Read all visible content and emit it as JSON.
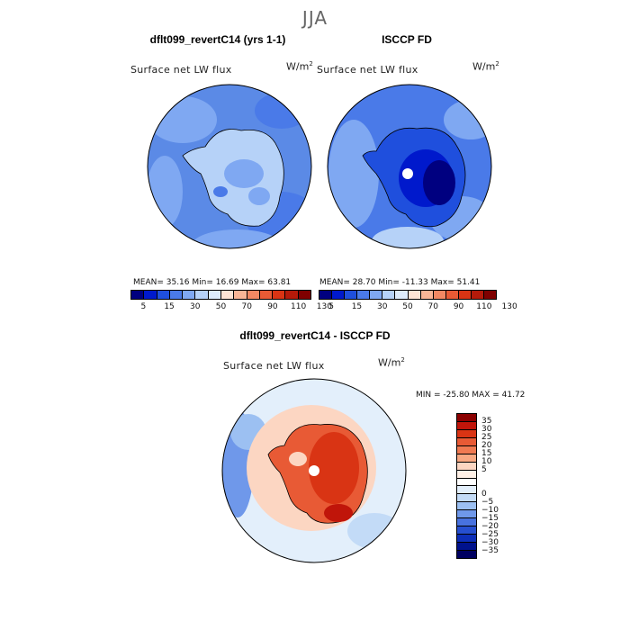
{
  "season": "JJA",
  "panels": {
    "model": {
      "title": "dflt099_revertC14 (yrs 1-1)",
      "variable": "Surface net LW flux",
      "units_base": "W/m",
      "units_exp": "2"
    },
    "obs": {
      "title": "ISCCP FD",
      "variable": "Surface net LW flux",
      "units_base": "W/m",
      "units_exp": "2"
    },
    "diff": {
      "title": "dflt099_revertC14 - ISCCP FD",
      "variable": "Surface net LW flux",
      "units_base": "W/m",
      "units_exp": "2"
    }
  },
  "stats": {
    "model": "MEAN=   35.16   Min=   16.69   Max=   63.81",
    "obs": "MEAN=   28.70   Min= -11.33   Max=   51.41",
    "diff": "MIN = -25.80  MAX =  41.72"
  },
  "colorbar_levels": {
    "labels": [
      "5",
      "15",
      "30",
      "50",
      "70",
      "90",
      "110",
      "130"
    ],
    "colors": [
      "#000080",
      "#0019cc",
      "#1f4fdd",
      "#4a7ae8",
      "#7fa8f2",
      "#b6d2f8",
      "#ddebfb",
      "#fde3d4",
      "#f9b596",
      "#f28863",
      "#e85a35",
      "#d93414",
      "#b51a0a",
      "#7f0000"
    ]
  },
  "colorbar_diff": {
    "labels": [
      "35",
      "30",
      "25",
      "20",
      "15",
      "10",
      "5",
      "0",
      "−5",
      "−10",
      "−15",
      "−20",
      "−25",
      "−30",
      "−35"
    ],
    "colors": [
      "#8b0000",
      "#c0150a",
      "#d93414",
      "#e85a35",
      "#f07a52",
      "#f8a882",
      "#fcd6c2",
      "#fff0e6",
      "#ffffff",
      "#e3effb",
      "#c3dbf7",
      "#9cc0f2",
      "#6f98ea",
      "#4872df",
      "#264fd0",
      "#0d2eb8",
      "#00128c",
      "#000060"
    ]
  },
  "colors": {
    "model_ocean": "#5b8ae6",
    "model_ice": "#b6d2f8",
    "obs_ocean": "#4a7ae8",
    "obs_interior": "#0019cc",
    "diff_ocean": "#e3effb",
    "diff_ice": "#e85a35"
  }
}
